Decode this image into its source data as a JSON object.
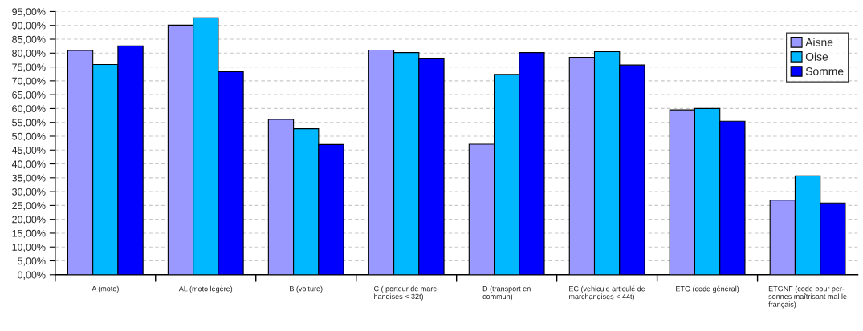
{
  "chart_data": {
    "type": "bar",
    "categories": [
      "A (moto)",
      "AL (moto légère)",
      "B (voiture)",
      "C ( porteur de marc-\nhandises < 32t)",
      "D (transport en\ncommun)",
      "EC (vehicule articulé de\nmarchandises < 44t)",
      "ETG (code général)",
      "ETGNF (code pour per-\nsonnes maîtrisant mal le\nfrançais)"
    ],
    "series": [
      {
        "name": "Aisne",
        "color": "#9999ff",
        "values": [
          81.0,
          90.1,
          56.1,
          81.1,
          47.1,
          78.5,
          59.5,
          26.9
        ]
      },
      {
        "name": "Oise",
        "color": "#00b8ff",
        "values": [
          75.9,
          92.7,
          52.7,
          80.2,
          72.3,
          80.5,
          60.0,
          35.7
        ]
      },
      {
        "name": "Somme",
        "color": "#0000ff",
        "values": [
          82.6,
          73.3,
          47.0,
          78.2,
          80.2,
          75.7,
          55.4,
          25.9
        ]
      }
    ],
    "ylim": [
      0,
      95
    ],
    "yticks": [
      {
        "value": 0,
        "label": "0,00%"
      },
      {
        "value": 5,
        "label": "5,00%"
      },
      {
        "value": 10,
        "label": "10,00%"
      },
      {
        "value": 15,
        "label": "15,00%"
      },
      {
        "value": 20,
        "label": "20,00%"
      },
      {
        "value": 25,
        "label": "25,00%"
      },
      {
        "value": 30,
        "label": "30,00%"
      },
      {
        "value": 35,
        "label": "35,00%"
      },
      {
        "value": 40,
        "label": "40,00%"
      },
      {
        "value": 45,
        "label": "45,00%"
      },
      {
        "value": 50,
        "label": "50,00%"
      },
      {
        "value": 55,
        "label": "55,00%"
      },
      {
        "value": 60,
        "label": "60,00%"
      },
      {
        "value": 65,
        "label": "65,00%"
      },
      {
        "value": 70,
        "label": "70,00%"
      },
      {
        "value": 75,
        "label": "75,00%"
      },
      {
        "value": 80,
        "label": "80,00%"
      },
      {
        "value": 85,
        "label": "85,00%"
      },
      {
        "value": 90,
        "label": "90,00%"
      },
      {
        "value": 95,
        "label": "95,00%"
      }
    ],
    "grid": "y",
    "legend": "top right"
  }
}
